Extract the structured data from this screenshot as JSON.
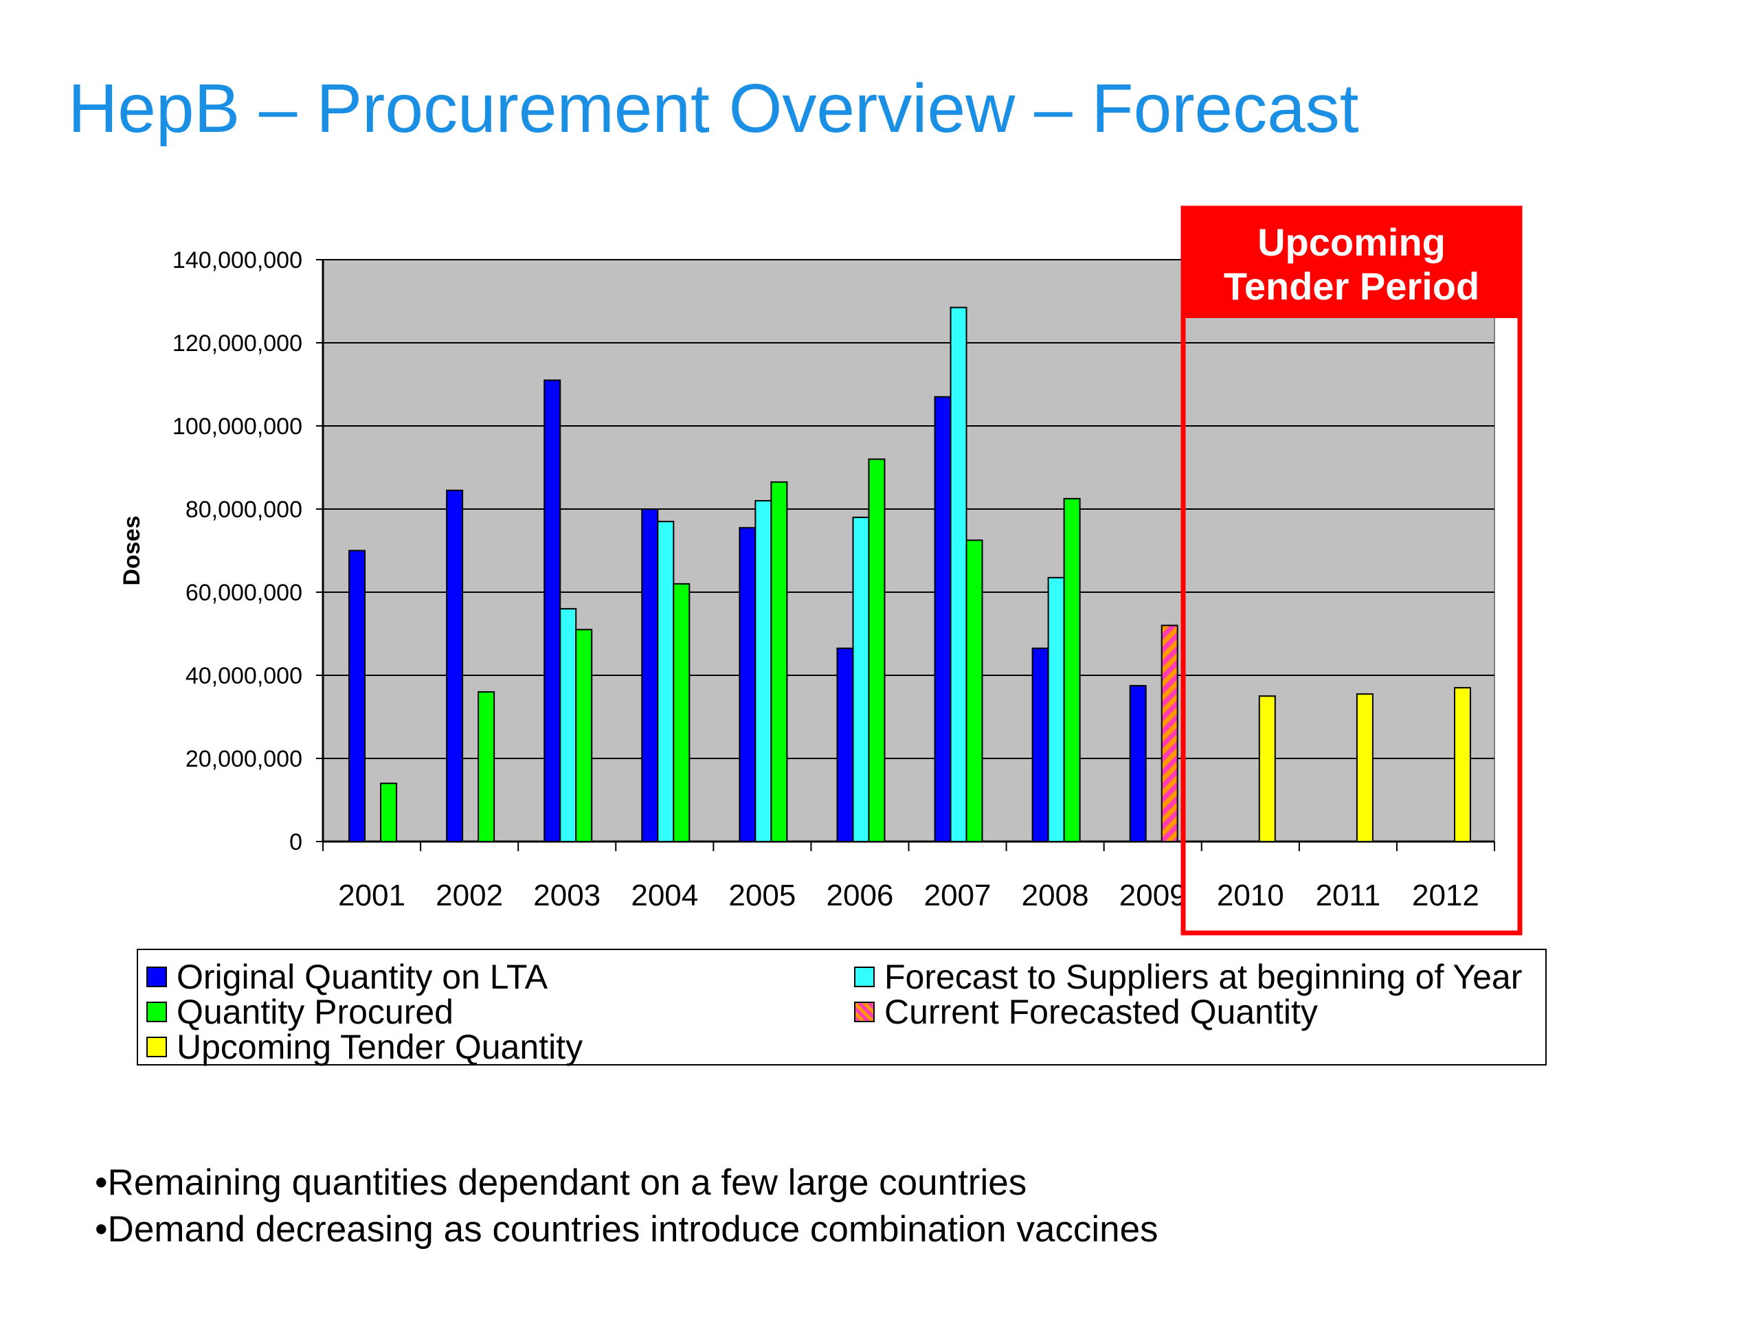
{
  "slide": {
    "title": "HepB – Procurement Overview – Forecast",
    "bullets": [
      "•Remaining quantities dependant on a few large countries",
      "•Demand decreasing as countries introduce combination vaccines"
    ]
  },
  "callout": {
    "line1": "Upcoming",
    "line2": "Tender Period",
    "color": "#ff0000"
  },
  "chart_data": {
    "type": "bar",
    "title": "",
    "xlabel": "",
    "ylabel": "Doses",
    "ylim": [
      0,
      140000000
    ],
    "yticks": [
      0,
      20000000,
      40000000,
      60000000,
      80000000,
      100000000,
      120000000,
      140000000
    ],
    "ytick_labels": [
      "0",
      "20,000,000",
      "40,000,000",
      "60,000,000",
      "80,000,000",
      "100,000,000",
      "120,000,000",
      "140,000,000"
    ],
    "grid": true,
    "legend_position": "bottom",
    "categories": [
      "2001",
      "2002",
      "2003",
      "2004",
      "2005",
      "2006",
      "2007",
      "2008",
      "2009",
      "2010",
      "2011",
      "2012"
    ],
    "series": [
      {
        "name": "Original Quantity on LTA",
        "color": "#0000ff",
        "values": [
          70000000,
          84500000,
          111000000,
          80000000,
          75500000,
          46500000,
          107000000,
          46500000,
          37500000,
          null,
          null,
          null
        ]
      },
      {
        "name": "Forecast to Suppliers at beginning of Year",
        "color": "#33ffff",
        "values": [
          null,
          null,
          56000000,
          77000000,
          82000000,
          78000000,
          128500000,
          63500000,
          null,
          null,
          null,
          null
        ]
      },
      {
        "name": "Quantity Procured",
        "color": "#00ff00",
        "values": [
          14000000,
          36000000,
          51000000,
          62000000,
          86500000,
          92000000,
          72500000,
          82500000,
          null,
          null,
          null,
          null
        ]
      },
      {
        "name": "Current Forecasted Quantity",
        "color": "#ff3cb4",
        "pattern": "hatched",
        "values": [
          null,
          null,
          null,
          null,
          null,
          null,
          null,
          null,
          52000000,
          null,
          null,
          null
        ]
      },
      {
        "name": "Upcoming Tender Quantity",
        "color": "#ffff00",
        "values": [
          null,
          null,
          null,
          null,
          null,
          null,
          null,
          null,
          null,
          35000000,
          35500000,
          37000000
        ]
      }
    ],
    "plot_background": "#c0c0c0"
  }
}
